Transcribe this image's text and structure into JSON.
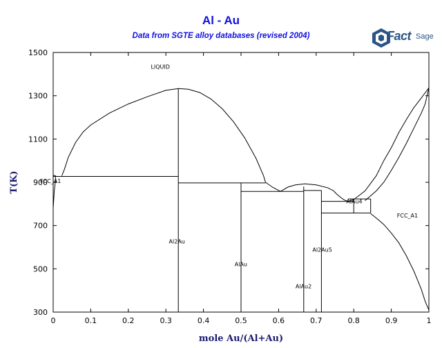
{
  "header": {
    "title": "Al - Au",
    "subtitle": "Data from SGTE alloy databases (revised 2004)",
    "logo_main": "Fact",
    "logo_sub": "Sage"
  },
  "chart_data": {
    "type": "line",
    "title": "Al - Au",
    "subtitle": "Data from SGTE alloy databases (revised 2004)",
    "xlabel": "mole Au/(Al+Au)",
    "ylabel": "T(K)",
    "xlim": [
      0,
      1
    ],
    "ylim": [
      300,
      1500
    ],
    "xticks": [
      0,
      0.1,
      0.2,
      0.3,
      0.4,
      0.5,
      0.6,
      0.7,
      0.8,
      0.9,
      1
    ],
    "xtick_labels": [
      "0",
      "0.1",
      "0.2",
      "0.3",
      "0.4",
      "0.5",
      "0.6",
      "0.7",
      "0.8",
      "0.9",
      "1"
    ],
    "yticks": [
      300,
      500,
      700,
      900,
      1100,
      1300,
      1500
    ],
    "ytick_labels": [
      "300",
      "500",
      "700",
      "900",
      "1100",
      "1300",
      "1500"
    ],
    "grid": false,
    "series": [
      {
        "id": "liquidus-left",
        "points": [
          [
            0.023,
            930
          ],
          [
            0.03,
            960
          ],
          [
            0.04,
            1015
          ],
          [
            0.06,
            1085
          ],
          [
            0.08,
            1133
          ],
          [
            0.1,
            1165
          ],
          [
            0.15,
            1220
          ],
          [
            0.2,
            1262
          ],
          [
            0.25,
            1295
          ],
          [
            0.3,
            1325
          ],
          [
            0.333,
            1333
          ]
        ]
      },
      {
        "id": "liquidus-right-of-Al2Au",
        "points": [
          [
            0.333,
            1333
          ],
          [
            0.36,
            1330
          ],
          [
            0.39,
            1315
          ],
          [
            0.42,
            1285
          ],
          [
            0.45,
            1240
          ],
          [
            0.48,
            1180
          ],
          [
            0.51,
            1105
          ],
          [
            0.54,
            1010
          ],
          [
            0.56,
            930
          ],
          [
            0.565,
            900
          ]
        ]
      },
      {
        "id": "liquidus-eutectic-1",
        "points": [
          [
            0.565,
            900
          ],
          [
            0.585,
            876
          ],
          [
            0.605,
            858
          ]
        ]
      },
      {
        "id": "liquidus-hump-AlAu2",
        "points": [
          [
            0.605,
            858
          ],
          [
            0.625,
            878
          ],
          [
            0.645,
            888
          ],
          [
            0.67,
            893
          ],
          [
            0.7,
            888
          ],
          [
            0.73,
            875
          ],
          [
            0.745,
            862
          ]
        ]
      },
      {
        "id": "liquidus-hump-Al2Au5",
        "points": [
          [
            0.745,
            862
          ],
          [
            0.755,
            845
          ],
          [
            0.765,
            830
          ],
          [
            0.775,
            818
          ],
          [
            0.785,
            812
          ]
        ]
      },
      {
        "id": "liquidus-to-Au",
        "points": [
          [
            0.785,
            812
          ],
          [
            0.8,
            820
          ],
          [
            0.83,
            860
          ],
          [
            0.86,
            930
          ],
          [
            0.88,
            1000
          ],
          [
            0.9,
            1060
          ],
          [
            0.92,
            1130
          ],
          [
            0.94,
            1190
          ],
          [
            0.96,
            1245
          ],
          [
            0.98,
            1290
          ],
          [
            1.0,
            1337
          ]
        ]
      },
      {
        "id": "solidus-to-Au",
        "points": [
          [
            0.83,
            815
          ],
          [
            0.86,
            860
          ],
          [
            0.88,
            900
          ],
          [
            0.9,
            955
          ],
          [
            0.92,
            1015
          ],
          [
            0.94,
            1080
          ],
          [
            0.96,
            1150
          ],
          [
            0.98,
            1220
          ],
          [
            0.99,
            1262
          ],
          [
            1.0,
            1337
          ]
        ]
      },
      {
        "id": "solvus-Au-FCC",
        "points": [
          [
            0.845,
            755
          ],
          [
            0.86,
            735
          ],
          [
            0.88,
            705
          ],
          [
            0.9,
            665
          ],
          [
            0.92,
            620
          ],
          [
            0.94,
            560
          ],
          [
            0.96,
            490
          ],
          [
            0.98,
            405
          ],
          [
            0.99,
            350
          ],
          [
            1.0,
            310
          ]
        ]
      },
      {
        "id": "FCC-Al-solidus",
        "points": [
          [
            0.0,
            933
          ],
          [
            0.006,
            930
          ],
          [
            0.006,
            905
          ],
          [
            0.003,
            860
          ],
          [
            0.0,
            780
          ]
        ]
      },
      {
        "id": "eutectic-Al-Al2Au",
        "points": [
          [
            0.0,
            927
          ],
          [
            0.333,
            927
          ]
        ]
      },
      {
        "id": "Al2Au-line",
        "points": [
          [
            0.333,
            1333
          ],
          [
            0.333,
            300
          ]
        ]
      },
      {
        "id": "peritectic-AlAu",
        "points": [
          [
            0.333,
            897
          ],
          [
            0.565,
            897
          ]
        ]
      },
      {
        "id": "AlAu-line",
        "points": [
          [
            0.5,
            897
          ],
          [
            0.5,
            300
          ]
        ]
      },
      {
        "id": "eutectic-AlAu-AlAu2",
        "points": [
          [
            0.5,
            858
          ],
          [
            0.667,
            858
          ]
        ]
      },
      {
        "id": "AlAu2-line",
        "points": [
          [
            0.667,
            880
          ],
          [
            0.667,
            300
          ]
        ]
      },
      {
        "id": "eutectic-AlAu2-Al2Au5",
        "points": [
          [
            0.667,
            862
          ],
          [
            0.714,
            862
          ]
        ]
      },
      {
        "id": "Al2Au5-line",
        "points": [
          [
            0.714,
            862
          ],
          [
            0.714,
            300
          ]
        ]
      },
      {
        "id": "upper-Al2Au5-bound",
        "points": [
          [
            0.714,
            812
          ],
          [
            0.8,
            812
          ]
        ]
      },
      {
        "id": "AlAu4-eutectic",
        "points": [
          [
            0.785,
            823
          ],
          [
            0.845,
            823
          ]
        ]
      },
      {
        "id": "AlAu4-left",
        "points": [
          [
            0.8,
            823
          ],
          [
            0.8,
            758
          ]
        ]
      },
      {
        "id": "AlAu4-right",
        "points": [
          [
            0.845,
            823
          ],
          [
            0.845,
            758
          ]
        ]
      },
      {
        "id": "lower-AlAu4-bound",
        "points": [
          [
            0.714,
            758
          ],
          [
            0.845,
            758
          ]
        ]
      }
    ],
    "annotations": [
      {
        "text": "LIQUID",
        "x": 0.26,
        "y": 1425
      },
      {
        "text": "FCC_A1",
        "x": -0.035,
        "y": 897
      },
      {
        "text": "FCC_A1",
        "x": 0.915,
        "y": 738
      },
      {
        "text": "Al2Au",
        "x": 0.308,
        "y": 618
      },
      {
        "text": "AlAu",
        "x": 0.483,
        "y": 512
      },
      {
        "text": "AlAu2",
        "x": 0.645,
        "y": 410
      },
      {
        "text": "Al2Au5",
        "x": 0.69,
        "y": 580
      },
      {
        "text": "AlAu4",
        "x": 0.78,
        "y": 803
      }
    ]
  }
}
